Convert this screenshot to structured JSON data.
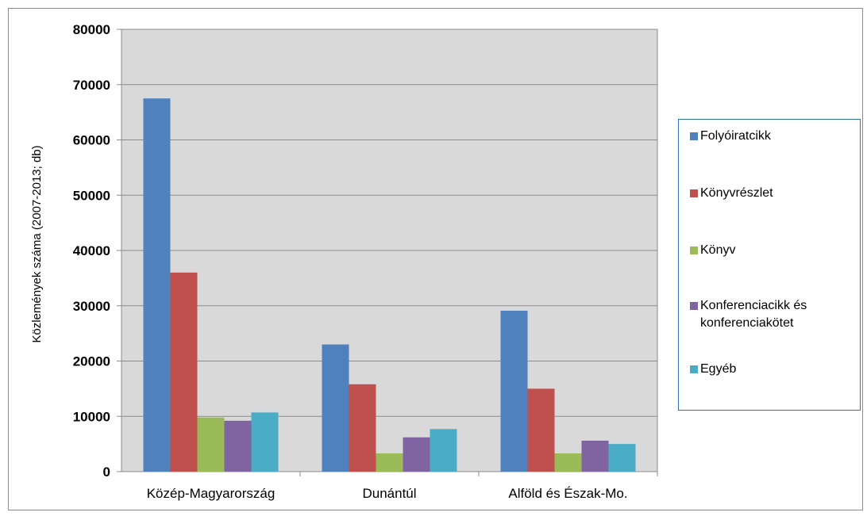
{
  "chart_data": {
    "type": "bar",
    "title": "",
    "xlabel": "",
    "ylabel": "Közlemények száma (2007-2013; db)",
    "categories": [
      "Közép-Magyarország",
      "Dunántúl",
      "Alföld és Észak-Mo."
    ],
    "series": [
      {
        "name": "Folyóiratcikk",
        "values": [
          67500,
          23000,
          29100
        ],
        "color": "#4f81bd"
      },
      {
        "name": "Könyvrészlet",
        "values": [
          36000,
          15800,
          15000
        ],
        "color": "#c0504d"
      },
      {
        "name": "Könyv",
        "values": [
          9800,
          3300,
          3300
        ],
        "color": "#9bbb59"
      },
      {
        "name": "Konferenciacikk és konferenciakötet",
        "values": [
          9200,
          6200,
          5600
        ],
        "color": "#8064a2"
      },
      {
        "name": "Egyéb",
        "values": [
          10700,
          7700,
          5000
        ],
        "color": "#4bacc6"
      }
    ],
    "ylim": [
      0,
      80000
    ],
    "yticks": [
      "0",
      "10000",
      "20000",
      "30000",
      "40000",
      "50000",
      "60000",
      "70000",
      "80000"
    ],
    "grid": true,
    "plot_background": "#d9d9d9",
    "legend_position": "right"
  }
}
